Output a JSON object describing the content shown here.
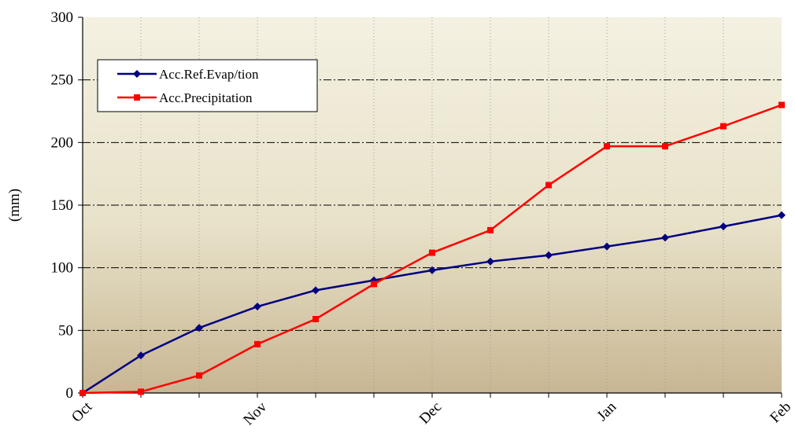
{
  "chart_data": {
    "type": "line",
    "title": "",
    "xlabel": "",
    "ylabel": "(mm)",
    "ylim": [
      0,
      300
    ],
    "yticks": [
      0,
      50,
      100,
      150,
      200,
      250,
      300
    ],
    "x": [
      0,
      1,
      2,
      3,
      4,
      5,
      6,
      7,
      8,
      9,
      10,
      11,
      12
    ],
    "x_tick_labels": [
      {
        "x": 0,
        "label": "Oct"
      },
      {
        "x": 3,
        "label": "Nov"
      },
      {
        "x": 6,
        "label": "Dec"
      },
      {
        "x": 9,
        "label": "Jan"
      },
      {
        "x": 12,
        "label": "Feb"
      }
    ],
    "grid": {
      "horizontal": "dash-dot",
      "vertical": "dotted"
    },
    "legend": "top-left",
    "series": [
      {
        "name": "Acc.Ref.Evap/tion",
        "color": "#000080",
        "marker": "diamond",
        "values": [
          0,
          30,
          52,
          69,
          82,
          90,
          98,
          105,
          110,
          117,
          124,
          133,
          142
        ]
      },
      {
        "name": "Acc.Precipitation",
        "color": "#ff0000",
        "marker": "square",
        "values": [
          0,
          1,
          14,
          39,
          59,
          87,
          112,
          130,
          166,
          197,
          197,
          213,
          230
        ]
      }
    ]
  }
}
